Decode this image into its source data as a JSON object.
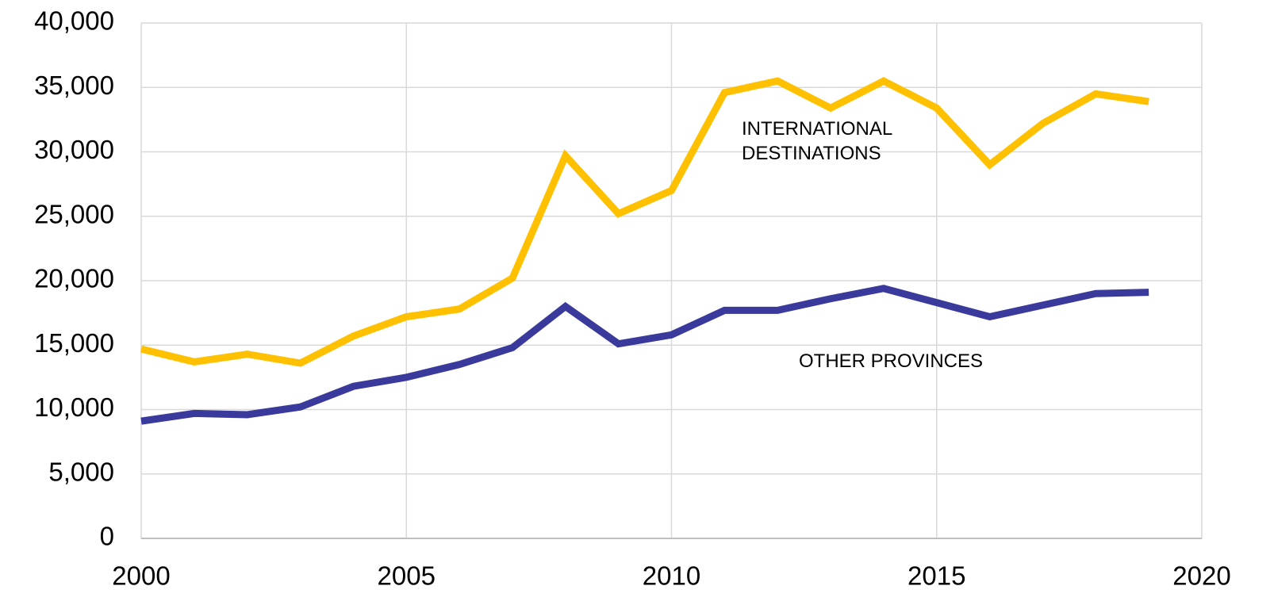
{
  "chart_data": {
    "type": "line",
    "x": [
      2000,
      2001,
      2002,
      2003,
      2004,
      2005,
      2006,
      2007,
      2008,
      2009,
      2010,
      2011,
      2012,
      2013,
      2014,
      2015,
      2016,
      2017,
      2018,
      2019
    ],
    "series": [
      {
        "name": "INTERNATIONAL DESTINATIONS",
        "color": "#ffc000",
        "values": [
          14700,
          13700,
          14300,
          13600,
          15700,
          17200,
          17800,
          20200,
          29700,
          25200,
          27000,
          34600,
          35500,
          33400,
          35500,
          33400,
          29000,
          32200,
          34500,
          33900
        ]
      },
      {
        "name": "OTHER PROVINCES",
        "color": "#3a3a9c",
        "values": [
          9100,
          9700,
          9600,
          10200,
          11800,
          12500,
          13500,
          14800,
          18000,
          15100,
          15800,
          17700,
          17700,
          18600,
          19400,
          18300,
          17200,
          18100,
          19000,
          19100
        ]
      }
    ],
    "xlim": [
      2000,
      2020
    ],
    "xticks": [
      2000,
      2005,
      2010,
      2015,
      2020
    ],
    "ylim": [
      0,
      40000
    ],
    "yticks": [
      0,
      {
        "value": 5000,
        "label": "5,000"
      },
      {
        "value": 10000,
        "label": "10,000"
      },
      {
        "value": 15000,
        "label": "15,000"
      },
      {
        "value": 20000,
        "label": "20,000"
      },
      {
        "value": 25000,
        "label": "25,000"
      },
      {
        "value": 30000,
        "label": "30,000"
      },
      {
        "value": 35000,
        "label": "35,000"
      },
      {
        "value": 40000,
        "label": "40,000"
      }
    ],
    "grid": true
  }
}
